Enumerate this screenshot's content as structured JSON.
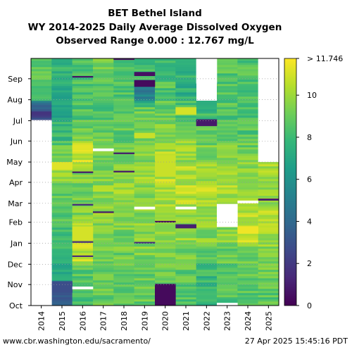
{
  "title": {
    "line1": "BET Bethel Island",
    "line2": "WY 2014-2025 Daily Average Dissolved Oxygen",
    "line3": "Observed Range 0.000 : 12.767 mg/L"
  },
  "footer": {
    "source": "www.cbr.washington.edu/sacramento/",
    "timestamp": "27 Apr 2025 15:45:16 PDT"
  },
  "chart_data": {
    "type": "heatmap",
    "x_categories": [
      "2014",
      "2015",
      "2016",
      "2017",
      "2018",
      "2019",
      "2020",
      "2021",
      "2022",
      "2023",
      "2024",
      "2025"
    ],
    "y_months": [
      "Oct",
      "Nov",
      "Dec",
      "Jan",
      "Feb",
      "Mar",
      "Apr",
      "May",
      "Jun",
      "Jul",
      "Aug",
      "Sep"
    ],
    "xlabel": "",
    "ylabel": "",
    "colorbar": {
      "min": 0,
      "max": 11.746,
      "ticks": [
        0,
        2,
        4,
        6,
        8,
        10
      ],
      "max_label": "> 11.746",
      "colormap": "viridis"
    },
    "grid": "horizontal dotted at month starts",
    "month_profile": {
      "2014": [
        null,
        null,
        null,
        null,
        null,
        null,
        null,
        null,
        null,
        2.5,
        8.2,
        8.8
      ],
      "2015": [
        3.0,
        7.0,
        7.8,
        8.2,
        8.6,
        8.9,
        10.3,
        9.0,
        8.0,
        7.0,
        7.0,
        7.8
      ],
      "2016": [
        8.5,
        8.5,
        10.5,
        10.8,
        9.5,
        9.2,
        9.5,
        10.8,
        9.0,
        8.5,
        8.5,
        8.5
      ],
      "2017": [
        8.8,
        9.0,
        9.3,
        9.5,
        9.8,
        9.8,
        9.5,
        9.2,
        9.0,
        8.5,
        8.5,
        9.0
      ],
      "2018": [
        8.5,
        8.8,
        9.0,
        9.2,
        9.5,
        9.8,
        9.5,
        9.0,
        8.8,
        8.6,
        8.5,
        8.5
      ],
      "2019": [
        8.8,
        9.0,
        9.3,
        9.6,
        9.6,
        9.5,
        10.0,
        9.5,
        9.5,
        9.0,
        5.0,
        8.0
      ],
      "2020": [
        0.5,
        8.8,
        9.2,
        9.5,
        10.0,
        10.2,
        10.5,
        10.2,
        9.5,
        9.0,
        8.5,
        8.2
      ],
      "2021": [
        8.5,
        8.8,
        9.2,
        9.8,
        10.0,
        10.4,
        10.5,
        10.0,
        9.2,
        8.5,
        7.5,
        7.5
      ],
      "2022": [
        7.5,
        7.8,
        8.5,
        9.5,
        10.0,
        10.4,
        10.2,
        9.5,
        8.5,
        8.0,
        null,
        null
      ],
      "2023": [
        8.5,
        8.5,
        8.8,
        9.5,
        null,
        10.2,
        10.0,
        9.5,
        9.0,
        8.5,
        8.5,
        8.5
      ],
      "2024": [
        8.5,
        8.8,
        9.2,
        10.5,
        10.5,
        10.0,
        9.8,
        9.2,
        8.5,
        8.5,
        8.2,
        8.5
      ],
      "2025": [
        8.6,
        9.0,
        9.5,
        10.0,
        10.2,
        10.0,
        10.3,
        9.5,
        null,
        null,
        null,
        null
      ]
    },
    "gaps": [
      {
        "year": "2014",
        "from": "Oct 1",
        "to": "Jul 1"
      },
      {
        "year": "2022",
        "from": "Aug 25",
        "to": "Sep 30"
      },
      {
        "year": "2023",
        "from": "Jan 25",
        "to": "Feb 27"
      },
      {
        "year": "2025",
        "from": "May 1",
        "to": "Sep 30"
      },
      {
        "year": "2016",
        "from": "Oct 25",
        "to": "Oct 28"
      },
      {
        "year": "2017",
        "from": "May 17",
        "to": "May 20"
      },
      {
        "year": "2019",
        "from": "Feb 20",
        "to": "Feb 23"
      },
      {
        "year": "2021",
        "from": "Feb 20",
        "to": "Feb 23"
      },
      {
        "year": "2023",
        "from": "Oct 1",
        "to": "Oct 4"
      },
      {
        "year": "2024",
        "from": "Mar 1",
        "to": "Mar 4"
      }
    ],
    "low_events": [
      {
        "year": "2014",
        "from": "Jun 20",
        "to": "Jul 2",
        "value": 2.5
      },
      {
        "year": "2015",
        "from": "Oct 20",
        "to": "Nov 5",
        "value": 2.8
      },
      {
        "year": "2020",
        "from": "Oct 1",
        "to": "Nov 1",
        "value": 0.3
      },
      {
        "year": "2019",
        "from": "Aug 20",
        "to": "Aug 29",
        "value": 0.3
      },
      {
        "year": "2019",
        "from": "Sep 5",
        "to": "Sep 10",
        "value": 0.5
      },
      {
        "year": "2022",
        "from": "Jun 23",
        "to": "Jul 2",
        "value": 0.8
      },
      {
        "year": "2021",
        "from": "Jan 23",
        "to": "Jan 28",
        "value": 1.0
      },
      {
        "year": "2025",
        "from": "Mar 5",
        "to": "Mar 7",
        "value": 1.0
      },
      {
        "year": "2020",
        "from": "Feb 1",
        "to": "Feb 2",
        "value": 0.4
      },
      {
        "year": "2016",
        "from": "Sep 3",
        "to": "Sep 4",
        "value": 0.6
      },
      {
        "year": "2018",
        "from": "Sep 29",
        "to": "Sep 30",
        "value": 0.6
      },
      {
        "year": "2016",
        "from": "Apr 15",
        "to": "Apr 16",
        "value": 0.8
      },
      {
        "year": "2018",
        "from": "Apr 16",
        "to": "Apr 17",
        "value": 0.8
      },
      {
        "year": "2018",
        "from": "May 13",
        "to": "May 14",
        "value": 0.8
      },
      {
        "year": "2017",
        "from": "Feb 15",
        "to": "Feb 16",
        "value": 0.8
      },
      {
        "year": "2016",
        "from": "Feb 26",
        "to": "Feb 27",
        "value": 1.5
      },
      {
        "year": "2016",
        "from": "Jan 2",
        "to": "Jan 3",
        "value": 1.5
      },
      {
        "year": "2016",
        "from": "Dec 12",
        "to": "Dec 13",
        "value": 1.5
      },
      {
        "year": "2019",
        "from": "Jan 1",
        "to": "Jan 2",
        "value": 1.5
      }
    ],
    "high_events": [
      {
        "year": "2016",
        "from": "Jan 5",
        "to": "Jan 25",
        "value": 11.0
      },
      {
        "year": "2024",
        "from": "Jan 15",
        "to": "Jan 25",
        "value": 11.5
      },
      {
        "year": "2021",
        "from": "Jul 10",
        "to": "Jul 20",
        "value": 11.0
      },
      {
        "year": "2015",
        "from": "Apr 20",
        "to": "Apr 30",
        "value": 11.2
      },
      {
        "year": "2016",
        "from": "May 20",
        "to": "May 25",
        "value": 11.3
      },
      {
        "year": "2019",
        "from": "Jun 5",
        "to": "Jun 12",
        "value": 10.8
      },
      {
        "year": "2020",
        "from": "Apr 10",
        "to": "May 10",
        "value": 10.8
      }
    ]
  }
}
